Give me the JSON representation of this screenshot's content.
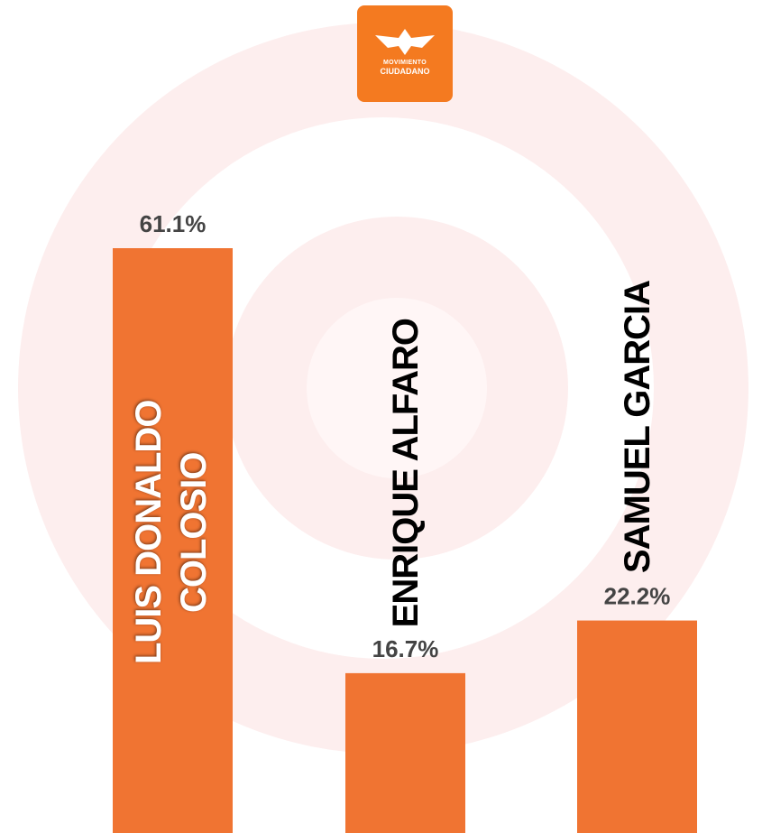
{
  "logo": {
    "line1": "MOVIMIENTO",
    "line2": "CIUDADANO"
  },
  "chart_data": {
    "type": "bar",
    "categories": [
      "LUIS DONALDO COLOSIO",
      "ENRIQUE ALFARO",
      "SAMUEL GARCIA"
    ],
    "values": [
      61.1,
      16.7,
      22.2
    ],
    "value_labels": [
      "61.1%",
      "16.7%",
      "22.2%"
    ],
    "color": "#f07432",
    "ylim": [
      0,
      61.1
    ]
  }
}
